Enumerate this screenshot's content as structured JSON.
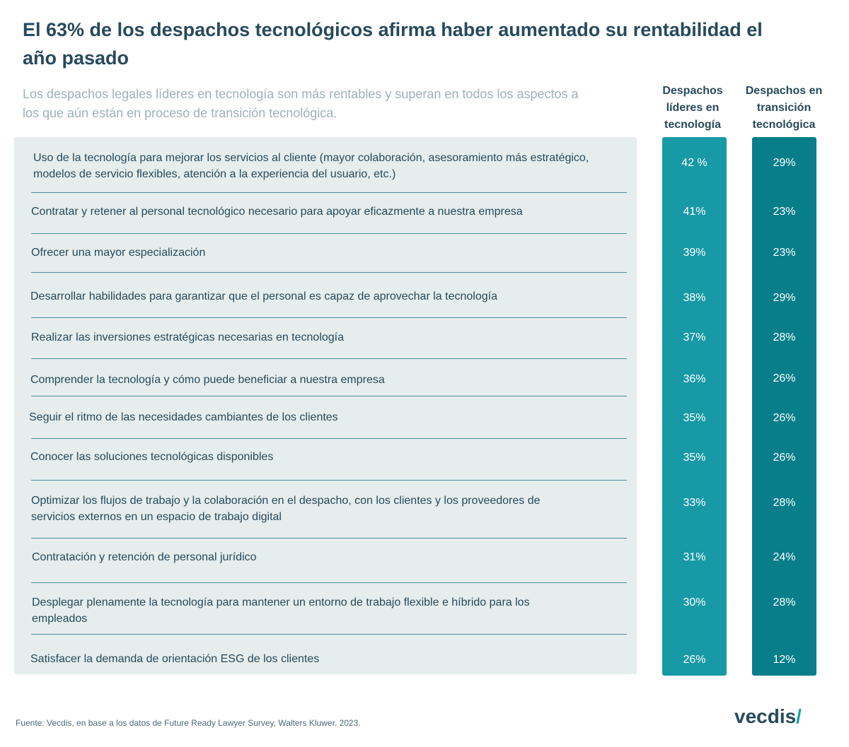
{
  "header": {
    "title": "El 63% de los despachos tecnológicos afirma haber aumentado su rentabilidad el año pasado",
    "subtitle": "Los despachos legales líderes en tecnología son más rentables y superan en todos los aspectos a los que aún están en proceso de transición tecnológica."
  },
  "chart_data": {
    "type": "table",
    "series": [
      {
        "name": "Despachos líderes en tecnología",
        "color": "#1799a6",
        "values": [
          "42 %",
          "41%",
          "39%",
          "38%",
          "37%",
          "36%",
          "35%",
          "35%",
          "33%",
          "31%",
          "30%",
          "26%"
        ]
      },
      {
        "name": "Despachos en transición tecnológica",
        "color": "#077e8a",
        "values": [
          "29%",
          "23%",
          "23%",
          "29%",
          "28%",
          "26%",
          "26%",
          "26%",
          "28%",
          "24%",
          "28%",
          "12%"
        ]
      }
    ],
    "categories": [
      "Uso de la tecnología para mejorar los servicios al cliente (mayor colaboración, asesoramiento más estratégico, modelos de servicio flexibles, atención a la experiencia del usuario, etc.)",
      "Contratar y retener al personal tecnológico necesario para apoyar eficazmente a nuestra empresa",
      "Ofrecer una mayor especialización",
      "Desarrollar habilidades para garantizar que el personal es capaz de aprovechar la tecnología",
      "Realizar las inversiones estratégicas necesarias en tecnología",
      "Comprender la tecnología y cómo puede beneficiar a nuestra empresa",
      "Seguir el ritmo de las necesidades cambiantes de los clientes",
      "Conocer las soluciones tecnológicas disponibles",
      "Optimizar los flujos de trabajo y la colaboración en el despacho, con los clientes y los proveedores de servicios externos en un espacio de trabajo digital",
      "Contratación y retención de personal jurídico",
      "Desplegar plenamente la tecnología para mantener un entorno de trabajo flexible e híbrido para los empleados",
      "Satisfacer la demanda de orientación ESG de los clientes"
    ]
  },
  "footer": {
    "source": "Fuente: Vecdis, en base a los datos de Future Ready Lawyer Survey, Walters Kluwer. 2023.",
    "logo_text": "vecdis",
    "logo_mark": "/"
  }
}
